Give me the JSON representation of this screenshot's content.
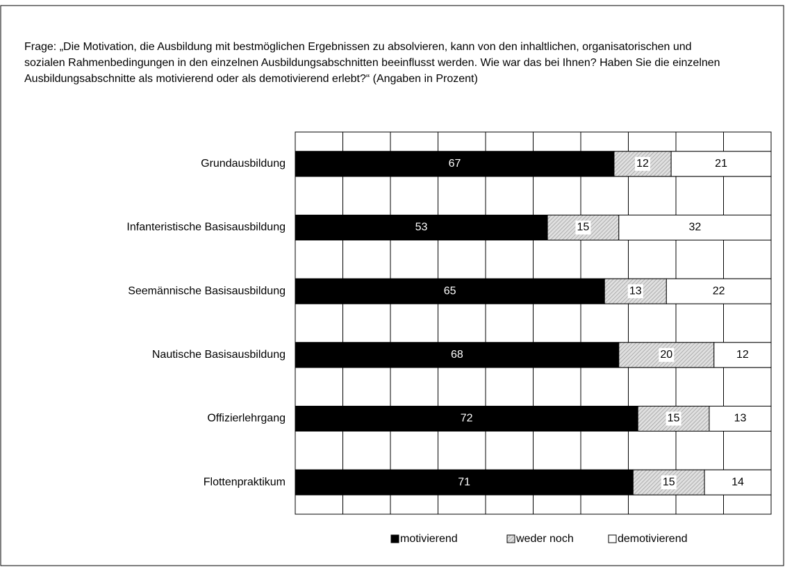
{
  "chart_data": {
    "type": "stacked_barh",
    "title": "Frage: „Die Motivation, die Ausbildung mit bestmöglichen Ergebnissen zu absolvieren, kann von den inhaltlichen, organisatorischen und sozialen Rahmenbedingungen in den einzelnen Ausbildungsabschnitten beeinflusst werden. Wie war das bei Ihnen? Haben Sie die einzelnen Ausbildungsabschnitte als motivierend oder als demotivierend erlebt?“ (Angaben in Prozent)",
    "categories": [
      "Grundausbildung",
      "Infanteristische Basisausbildung",
      "Seemännische Basisausbildung",
      "Nautische Basisausbildung",
      "Offizierlehrgang",
      "Flottenpraktikum"
    ],
    "series": [
      {
        "name": "motivierend",
        "color": "#000000",
        "values": [
          67,
          53,
          65,
          68,
          72,
          71
        ]
      },
      {
        "name": "weder noch",
        "color": "#a0a0a0",
        "pattern": "hatch",
        "values": [
          12,
          15,
          13,
          20,
          15,
          15
        ]
      },
      {
        "name": "demotivierend",
        "color": "#ffffff",
        "values": [
          21,
          32,
          22,
          12,
          13,
          14
        ]
      }
    ],
    "xlim": [
      0,
      100
    ],
    "xticks": [
      0,
      10,
      20,
      30,
      40,
      50,
      60,
      70,
      80,
      90,
      100
    ],
    "grid": true,
    "legend": "bottom"
  }
}
